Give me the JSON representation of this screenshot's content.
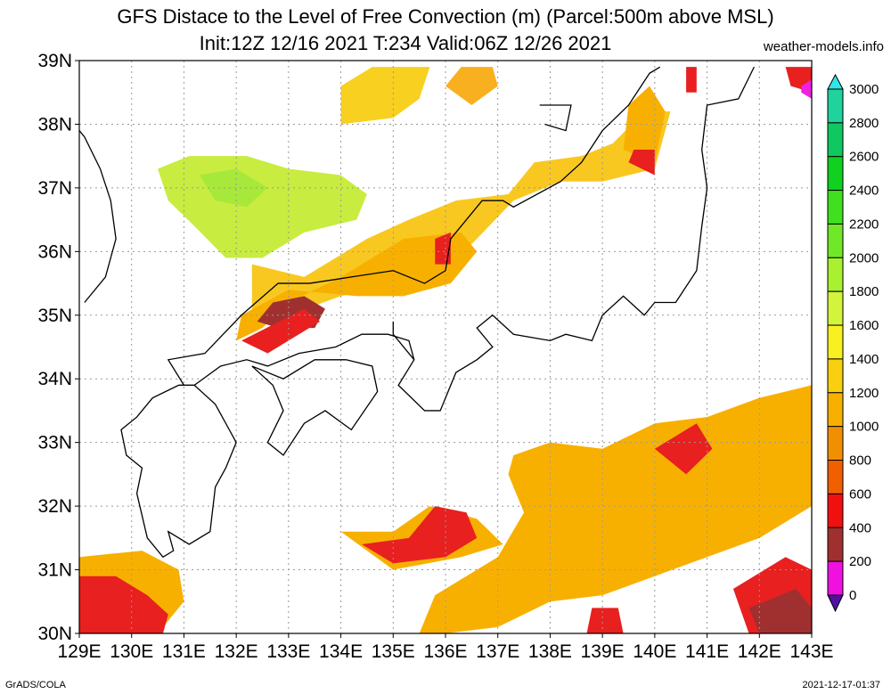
{
  "title_line1": "GFS Distace to the Level of Free Convection (m) (Parcel:500m above MSL)",
  "title_line2": "Init:12Z 12/16 2021 T:234 Valid:06Z 12/26 2021",
  "site": "weather-models.info",
  "footer_left": "GrADS/COLA",
  "footer_right": "2021-12-17-01:37",
  "lon_labels": [
    "129E",
    "130E",
    "131E",
    "132E",
    "133E",
    "134E",
    "135E",
    "136E",
    "137E",
    "138E",
    "139E",
    "140E",
    "141E",
    "142E",
    "143E"
  ],
  "lat_labels": [
    "39N",
    "38N",
    "37N",
    "36N",
    "35N",
    "34N",
    "33N",
    "32N",
    "31N",
    "30N"
  ],
  "colorbar": {
    "labels": [
      "3000",
      "2800",
      "2600",
      "2400",
      "2200",
      "2000",
      "1800",
      "1600",
      "1400",
      "1200",
      "1000",
      "800",
      "600",
      "400",
      "200",
      "0"
    ],
    "colors": [
      "#30e6e6",
      "#20d29c",
      "#10c860",
      "#10d020",
      "#40e020",
      "#70e828",
      "#a8f030",
      "#d2f43a",
      "#f8f020",
      "#f8d010",
      "#f8b000",
      "#f09000",
      "#f06000",
      "#f01010",
      "#a03030",
      "#f010e0",
      "#5010a0"
    ]
  },
  "map": {
    "lon_range": [
      129,
      143
    ],
    "lat_range": [
      30,
      39
    ],
    "regions": [
      {
        "c": "#f8d020",
        "pts": [
          [
            134,
            38.6
          ],
          [
            134.6,
            38.9
          ],
          [
            135.7,
            38.9
          ],
          [
            135.5,
            38.4
          ],
          [
            135,
            38.1
          ],
          [
            134,
            38
          ]
        ]
      },
      {
        "c": "#f8b020",
        "pts": [
          [
            136.9,
            38.9
          ],
          [
            137,
            38.6
          ],
          [
            136.5,
            38.3
          ],
          [
            136,
            38.6
          ],
          [
            136.3,
            38.9
          ]
        ]
      },
      {
        "c": "#c8ec40",
        "pts": [
          [
            130.5,
            37.3
          ],
          [
            131.1,
            37.5
          ],
          [
            132.2,
            37.5
          ],
          [
            133,
            37.3
          ],
          [
            134,
            37.2
          ],
          [
            134.5,
            36.9
          ],
          [
            134.3,
            36.5
          ],
          [
            133.3,
            36.3
          ],
          [
            132.5,
            35.9
          ],
          [
            131.8,
            35.9
          ],
          [
            131.2,
            36.4
          ],
          [
            130.7,
            36.8
          ]
        ]
      },
      {
        "c": "#a8e83a",
        "pts": [
          [
            131.3,
            37.2
          ],
          [
            132,
            37.3
          ],
          [
            132.6,
            37
          ],
          [
            132.2,
            36.7
          ],
          [
            131.6,
            36.8
          ]
        ]
      },
      {
        "c": "#f8c820",
        "pts": [
          [
            132.3,
            35.8
          ],
          [
            133.3,
            35.6
          ],
          [
            134.5,
            36.2
          ],
          [
            135.3,
            36.5
          ],
          [
            136.2,
            36.8
          ],
          [
            137.2,
            36.9
          ],
          [
            137.7,
            37.4
          ],
          [
            138.6,
            37.5
          ],
          [
            139.2,
            37.7
          ],
          [
            139.8,
            38.2
          ],
          [
            140.3,
            38.2
          ],
          [
            140,
            37.3
          ],
          [
            139,
            37.1
          ],
          [
            138.2,
            37.1
          ],
          [
            137.3,
            36.8
          ],
          [
            136.6,
            36.2
          ],
          [
            136,
            35.7
          ],
          [
            135.2,
            35.5
          ],
          [
            134,
            35.3
          ],
          [
            133,
            35
          ],
          [
            132.3,
            35
          ]
        ]
      },
      {
        "c": "#f8b000",
        "pts": [
          [
            132.1,
            35
          ],
          [
            133,
            35.4
          ],
          [
            134.3,
            35.3
          ],
          [
            135.2,
            35.3
          ],
          [
            136.1,
            35.5
          ],
          [
            136.6,
            36
          ],
          [
            136.3,
            36.3
          ],
          [
            135.2,
            36.2
          ],
          [
            134,
            35.6
          ],
          [
            133,
            35.2
          ],
          [
            132.5,
            34.8
          ],
          [
            132,
            34.6
          ]
        ]
      },
      {
        "c": "#f8b000",
        "pts": [
          [
            139.5,
            38.3
          ],
          [
            139.9,
            38.6
          ],
          [
            140.2,
            38.2
          ],
          [
            140,
            37.4
          ],
          [
            139.4,
            37.6
          ]
        ]
      },
      {
        "c": "#a03030",
        "pts": [
          [
            132.7,
            35.2
          ],
          [
            133.3,
            35.3
          ],
          [
            133.7,
            35.1
          ],
          [
            133.5,
            34.8
          ],
          [
            132.8,
            34.8
          ],
          [
            132.4,
            34.9
          ]
        ]
      },
      {
        "c": "#e82020",
        "pts": [
          [
            132.1,
            34.6
          ],
          [
            133.3,
            35.1
          ],
          [
            133.6,
            34.9
          ],
          [
            132.6,
            34.4
          ]
        ]
      },
      {
        "c": "#e82020",
        "pts": [
          [
            135.8,
            36.2
          ],
          [
            136.1,
            36.3
          ],
          [
            136.1,
            35.8
          ],
          [
            135.8,
            35.8
          ]
        ]
      },
      {
        "c": "#e82020",
        "pts": [
          [
            139.6,
            37.6
          ],
          [
            140,
            37.6
          ],
          [
            140,
            37.2
          ],
          [
            139.5,
            37.4
          ]
        ]
      },
      {
        "c": "#e82020",
        "pts": [
          [
            140.6,
            38.9
          ],
          [
            140.8,
            38.9
          ],
          [
            140.8,
            38.5
          ],
          [
            140.6,
            38.5
          ]
        ]
      },
      {
        "c": "#e82020",
        "pts": [
          [
            142.5,
            38.9
          ],
          [
            143,
            38.9
          ],
          [
            143,
            38.5
          ],
          [
            142.6,
            38.6
          ]
        ]
      },
      {
        "c": "#f020e0",
        "pts": [
          [
            142.8,
            38.6
          ],
          [
            143,
            38.7
          ],
          [
            143,
            38.4
          ],
          [
            142.8,
            38.5
          ]
        ]
      },
      {
        "c": "#f8b000",
        "pts": [
          [
            129,
            31.2
          ],
          [
            130.2,
            31.3
          ],
          [
            130.9,
            31
          ],
          [
            131,
            30.5
          ],
          [
            130.5,
            30
          ],
          [
            129,
            30
          ]
        ]
      },
      {
        "c": "#e82020",
        "pts": [
          [
            129,
            30.9
          ],
          [
            129.7,
            30.9
          ],
          [
            130.3,
            30.6
          ],
          [
            130.7,
            30.3
          ],
          [
            130.6,
            30
          ],
          [
            129,
            30
          ]
        ]
      },
      {
        "c": "#f8b000",
        "pts": [
          [
            137.3,
            32.8
          ],
          [
            138,
            33
          ],
          [
            139,
            32.9
          ],
          [
            140,
            33.3
          ],
          [
            141,
            33.4
          ],
          [
            142,
            33.7
          ],
          [
            143,
            33.9
          ],
          [
            143,
            32
          ],
          [
            142,
            31.5
          ],
          [
            141,
            31.2
          ],
          [
            140,
            30.9
          ],
          [
            139,
            30.6
          ],
          [
            138,
            30.5
          ],
          [
            137,
            30.1
          ],
          [
            136,
            30
          ],
          [
            135.5,
            30
          ],
          [
            135.8,
            30.6
          ],
          [
            137,
            31.2
          ],
          [
            137.5,
            31.9
          ],
          [
            137.2,
            32.5
          ]
        ]
      },
      {
        "c": "#f8b000",
        "pts": [
          [
            134,
            31.6
          ],
          [
            135,
            31.6
          ],
          [
            135.7,
            32
          ],
          [
            136.6,
            31.8
          ],
          [
            137.1,
            31.4
          ],
          [
            136.3,
            31.2
          ],
          [
            135,
            31
          ]
        ]
      },
      {
        "c": "#e82020",
        "pts": [
          [
            134.4,
            31.4
          ],
          [
            135.3,
            31.5
          ],
          [
            135.8,
            32
          ],
          [
            136.4,
            31.9
          ],
          [
            136.6,
            31.5
          ],
          [
            136,
            31.2
          ],
          [
            135,
            31.1
          ]
        ]
      },
      {
        "c": "#e82020",
        "pts": [
          [
            140,
            32.9
          ],
          [
            140.8,
            33.3
          ],
          [
            141.1,
            32.9
          ],
          [
            140.6,
            32.5
          ]
        ]
      },
      {
        "c": "#e82020",
        "pts": [
          [
            141.5,
            30.7
          ],
          [
            142.5,
            31.2
          ],
          [
            143,
            31
          ],
          [
            143,
            30
          ],
          [
            141.8,
            30
          ]
        ]
      },
      {
        "c": "#a03030",
        "pts": [
          [
            141.8,
            30.4
          ],
          [
            142.7,
            30.7
          ],
          [
            143,
            30.4
          ],
          [
            143,
            30
          ],
          [
            142,
            30
          ]
        ]
      },
      {
        "c": "#e82020",
        "pts": [
          [
            138.8,
            30.4
          ],
          [
            139.3,
            30.4
          ],
          [
            139.4,
            30
          ],
          [
            138.7,
            30
          ]
        ]
      }
    ],
    "coast": [
      [
        [
          129.1,
          35.2
        ],
        [
          129.5,
          35.6
        ],
        [
          129.7,
          36.2
        ],
        [
          129.6,
          36.8
        ],
        [
          129.4,
          37.3
        ],
        [
          129.1,
          37.8
        ],
        [
          129,
          37.9
        ]
      ],
      [
        [
          130.9,
          33.9
        ],
        [
          131.2,
          33.9
        ],
        [
          131.7,
          34.2
        ],
        [
          132.2,
          34.3
        ],
        [
          132.6,
          34.2
        ],
        [
          133.2,
          34.4
        ],
        [
          133.9,
          34.5
        ],
        [
          134.4,
          34.7
        ],
        [
          134.9,
          34.7
        ],
        [
          135.3,
          34.6
        ],
        [
          135.4,
          34.3
        ],
        [
          135.1,
          33.9
        ],
        [
          135.6,
          33.5
        ],
        [
          135.9,
          33.5
        ],
        [
          136.2,
          34.1
        ],
        [
          136.6,
          34.3
        ],
        [
          136.9,
          34.5
        ],
        [
          136.6,
          34.8
        ],
        [
          136.9,
          35
        ],
        [
          137.3,
          34.7
        ],
        [
          138,
          34.6
        ],
        [
          138.3,
          34.7
        ],
        [
          138.8,
          34.6
        ],
        [
          139,
          35
        ],
        [
          139.4,
          35.3
        ],
        [
          139.8,
          35
        ],
        [
          140,
          35.2
        ],
        [
          140.4,
          35.2
        ],
        [
          140.8,
          35.7
        ],
        [
          140.9,
          36.4
        ],
        [
          141,
          37
        ],
        [
          140.9,
          37.6
        ],
        [
          141,
          38.3
        ],
        [
          141.6,
          38.4
        ],
        [
          141.9,
          38.9
        ]
      ],
      [
        [
          131,
          33.9
        ],
        [
          130.7,
          34.3
        ],
        [
          131.4,
          34.4
        ],
        [
          132.1,
          35
        ],
        [
          132.8,
          35.5
        ],
        [
          133.4,
          35.5
        ],
        [
          134.2,
          35.6
        ],
        [
          135,
          35.7
        ],
        [
          135.6,
          35.5
        ],
        [
          136,
          35.7
        ],
        [
          136.1,
          36.2
        ],
        [
          136.7,
          36.8
        ],
        [
          137.1,
          36.8
        ],
        [
          137.3,
          36.7
        ],
        [
          138.2,
          37.1
        ],
        [
          138.6,
          37.4
        ],
        [
          139,
          37.9
        ],
        [
          139.5,
          38.3
        ],
        [
          139.9,
          38.8
        ],
        [
          140.1,
          38.9
        ]
      ],
      [
        [
          132.3,
          34.2
        ],
        [
          132.7,
          33.9
        ],
        [
          132.9,
          33.5
        ],
        [
          132.6,
          33
        ],
        [
          132.9,
          32.8
        ],
        [
          133.3,
          33.3
        ],
        [
          133.7,
          33.5
        ],
        [
          134.2,
          33.2
        ],
        [
          134.7,
          33.8
        ],
        [
          134.6,
          34.2
        ],
        [
          134.1,
          34.3
        ],
        [
          133.5,
          34.3
        ],
        [
          132.9,
          34
        ],
        [
          132.3,
          34.2
        ]
      ],
      [
        [
          130.9,
          33.9
        ],
        [
          130.4,
          33.7
        ],
        [
          130.1,
          33.4
        ],
        [
          129.8,
          33.2
        ],
        [
          129.9,
          32.8
        ],
        [
          130.2,
          32.6
        ],
        [
          130.1,
          32.2
        ],
        [
          130.3,
          31.5
        ],
        [
          130.6,
          31.2
        ],
        [
          130.8,
          31.3
        ],
        [
          130.7,
          31.6
        ],
        [
          131.1,
          31.4
        ],
        [
          131.5,
          31.6
        ],
        [
          131.6,
          32.3
        ],
        [
          131.8,
          32.6
        ],
        [
          132,
          33
        ],
        [
          131.8,
          33.3
        ],
        [
          131.6,
          33.6
        ],
        [
          131.2,
          33.9
        ],
        [
          130.9,
          33.9
        ]
      ],
      [
        [
          137.8,
          38.3
        ],
        [
          138.4,
          38.3
        ],
        [
          138.3,
          37.9
        ],
        [
          137.9,
          38
        ]
      ],
      [
        [
          135.4,
          34.3
        ],
        [
          135,
          34.7
        ],
        [
          135,
          34.9
        ]
      ]
    ]
  }
}
